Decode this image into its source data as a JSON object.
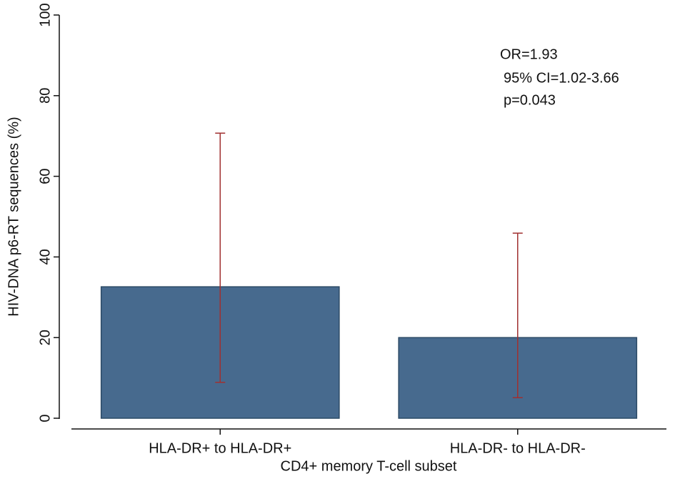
{
  "chart_data": {
    "type": "bar",
    "y_label": "HIV-DNA p6-RT sequences (%)",
    "x_label": "CD4+ memory T-cell subset",
    "categories": [
      "HLA-DR+ to HLA-DR+",
      "HLA-DR- to HLA-DR-"
    ],
    "values": [
      32.6,
      20.0
    ],
    "ci_lower": [
      8.9,
      5.1
    ],
    "ci_upper": [
      70.7,
      45.9
    ],
    "color": "#476a8e",
    "error_color": "#a03030",
    "ylim": [
      0,
      100
    ],
    "yticks": [
      0,
      20,
      40,
      60,
      80,
      100
    ],
    "annotations": [
      "OR=1.93",
      "95% CI=1.02-3.66",
      "p=0.043"
    ]
  }
}
